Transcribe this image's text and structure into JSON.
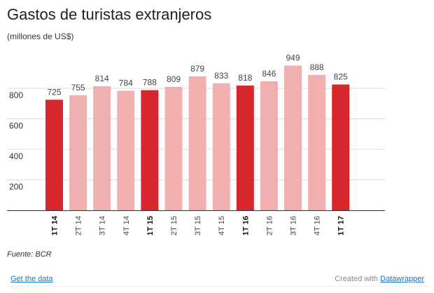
{
  "title": "Gastos de turistas extranjeros",
  "subtitle": "(millones de US$)",
  "source": "Fuente: BCR",
  "footer": {
    "get_data_label": "Get the data",
    "created_with_label": "Created with",
    "tool_label": "Datawrapper"
  },
  "colors": {
    "highlight": "#d7262c",
    "normal": "#f0b0b0",
    "grid": "#dddddd",
    "axis": "#333333"
  },
  "chart_data": {
    "type": "bar",
    "title": "Gastos de turistas extranjeros",
    "subtitle": "(millones de US$)",
    "xlabel": "",
    "ylabel": "",
    "ylim": [
      0,
      1000
    ],
    "yticks": [
      200,
      400,
      600,
      800
    ],
    "grid": true,
    "categories": [
      "1T 14",
      "2T 14",
      "3T 14",
      "4T 14",
      "1T 15",
      "2T 15",
      "3T 15",
      "4T 15",
      "1T 16",
      "2T 16",
      "3T 16",
      "4T 16",
      "1T 17"
    ],
    "values": [
      725,
      755,
      814,
      784,
      788,
      809,
      879,
      833,
      818,
      846,
      949,
      888,
      825
    ],
    "highlighted": [
      true,
      false,
      false,
      false,
      true,
      false,
      false,
      false,
      true,
      false,
      false,
      false,
      true
    ]
  }
}
